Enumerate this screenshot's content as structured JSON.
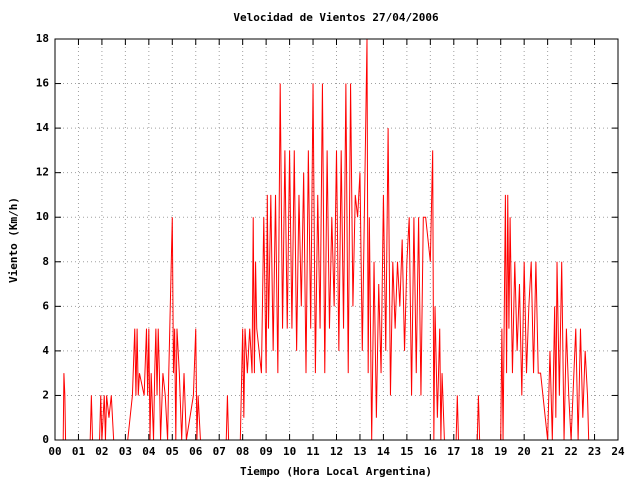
{
  "chart_data": {
    "type": "line",
    "title": "Velocidad de Vientos 27/04/2006",
    "x_label": "Tiempo (Hora Local Argentina)",
    "y_label": "Viento (Km/h)",
    "color": "#ff0000",
    "grid": true,
    "xlim": [
      0,
      24
    ],
    "ylim": [
      0,
      18
    ],
    "yticks": [
      0,
      2,
      4,
      6,
      8,
      10,
      12,
      14,
      16,
      18
    ],
    "xticks": [
      {
        "value": 0,
        "label": "00"
      },
      {
        "value": 1,
        "label": "01"
      },
      {
        "value": 2,
        "label": "02"
      },
      {
        "value": 3,
        "label": "03"
      },
      {
        "value": 4,
        "label": "04"
      },
      {
        "value": 5,
        "label": "05"
      },
      {
        "value": 6,
        "label": "06"
      },
      {
        "value": 7,
        "label": "07"
      },
      {
        "value": 8,
        "label": "08"
      },
      {
        "value": 9,
        "label": "09"
      },
      10,
      11,
      12,
      13,
      14,
      15,
      16,
      17,
      18,
      19,
      20,
      21,
      22,
      23,
      24
    ],
    "x": [
      0,
      0.35,
      0.38,
      0.42,
      0.45,
      1.5,
      1.55,
      1.6,
      1.9,
      1.95,
      2.0,
      2.1,
      2.15,
      2.2,
      2.3,
      2.4,
      2.5,
      3.1,
      3.2,
      3.3,
      3.4,
      3.45,
      3.5,
      3.55,
      3.6,
      3.8,
      3.9,
      3.95,
      4.0,
      4.05,
      4.1,
      4.2,
      4.25,
      4.3,
      4.35,
      4.4,
      4.45,
      4.5,
      4.6,
      4.7,
      4.8,
      4.85,
      5.0,
      5.05,
      5.1,
      5.15,
      5.2,
      5.3,
      5.4,
      5.5,
      5.6,
      5.9,
      6.0,
      6.05,
      6.1,
      6.2,
      6.3,
      7.3,
      7.35,
      7.4,
      7.9,
      8.0,
      8.05,
      8.1,
      8.2,
      8.3,
      8.4,
      8.45,
      8.5,
      8.55,
      8.6,
      8.7,
      8.8,
      8.9,
      9.0,
      9.05,
      9.1,
      9.2,
      9.3,
      9.4,
      9.5,
      9.6,
      9.7,
      9.8,
      9.9,
      10.0,
      10.1,
      10.2,
      10.3,
      10.4,
      10.5,
      10.6,
      10.7,
      10.8,
      10.9,
      11.0,
      11.1,
      11.2,
      11.3,
      11.4,
      11.5,
      11.6,
      11.7,
      11.8,
      11.9,
      12.0,
      12.1,
      12.2,
      12.3,
      12.4,
      12.5,
      12.6,
      12.7,
      12.8,
      12.9,
      13.0,
      13.1,
      13.2,
      13.3,
      13.35,
      13.4,
      13.5,
      13.6,
      13.7,
      13.8,
      13.9,
      14.0,
      14.1,
      14.2,
      14.3,
      14.4,
      14.5,
      14.6,
      14.7,
      14.8,
      14.9,
      15.0,
      15.1,
      15.2,
      15.3,
      15.4,
      15.5,
      15.6,
      15.7,
      15.8,
      16.0,
      16.1,
      16.15,
      16.2,
      16.3,
      16.4,
      16.45,
      16.5,
      16.6,
      17.1,
      17.15,
      17.2,
      18.0,
      18.05,
      18.1,
      19.0,
      19.05,
      19.1,
      19.2,
      19.25,
      19.3,
      19.35,
      19.4,
      19.5,
      19.6,
      19.7,
      19.8,
      19.9,
      20.0,
      20.1,
      20.2,
      20.3,
      20.4,
      20.5,
      20.6,
      20.7,
      20.8,
      20.9,
      21.0,
      21.1,
      21.2,
      21.3,
      21.35,
      21.4,
      21.5,
      21.6,
      21.7,
      21.8,
      21.9,
      22.0,
      22.2,
      22.3,
      22.4,
      22.5,
      22.6,
      22.7,
      22.75
    ],
    "values": [
      0,
      0,
      3,
      2,
      0,
      0,
      2,
      0,
      0,
      2,
      0,
      2,
      0,
      2,
      1,
      2,
      0,
      0,
      1,
      2,
      5,
      2,
      5,
      2,
      3,
      2,
      5,
      2,
      5,
      0,
      3,
      0,
      3,
      5,
      2,
      5,
      3,
      0,
      3,
      2,
      0,
      3,
      10,
      3,
      5,
      0,
      5,
      3,
      0,
      3,
      0,
      2,
      5,
      0,
      2,
      0,
      0,
      0,
      2,
      0,
      0,
      5,
      1,
      5,
      3,
      5,
      3,
      10,
      3,
      8,
      5,
      4,
      3,
      10,
      3,
      11,
      5,
      11,
      4,
      11,
      3,
      16,
      5,
      13,
      5,
      13,
      5,
      13,
      4,
      11,
      6,
      12,
      3,
      13,
      5,
      16,
      3,
      11,
      5,
      16,
      3,
      13,
      5,
      10,
      6,
      13,
      4,
      13,
      5,
      16,
      3,
      16,
      6,
      11,
      10,
      12,
      4,
      11,
      18,
      3,
      10,
      0,
      8,
      1,
      7,
      3,
      11,
      4,
      14,
      2,
      8,
      5,
      8,
      6,
      9,
      4,
      8,
      10,
      2,
      10,
      3,
      10,
      2,
      10,
      10,
      8,
      13,
      0,
      6,
      1,
      5,
      0,
      3,
      0,
      0,
      2,
      0,
      0,
      2,
      0,
      0,
      5,
      0,
      11,
      3,
      11,
      5,
      10,
      3,
      8,
      4,
      7,
      2,
      8,
      3,
      6,
      8,
      3,
      8,
      3,
      3,
      2,
      1,
      0,
      4,
      0,
      6,
      1,
      8,
      2,
      8,
      0,
      5,
      2,
      0,
      5,
      0,
      5,
      1,
      4,
      2,
      0
    ]
  }
}
